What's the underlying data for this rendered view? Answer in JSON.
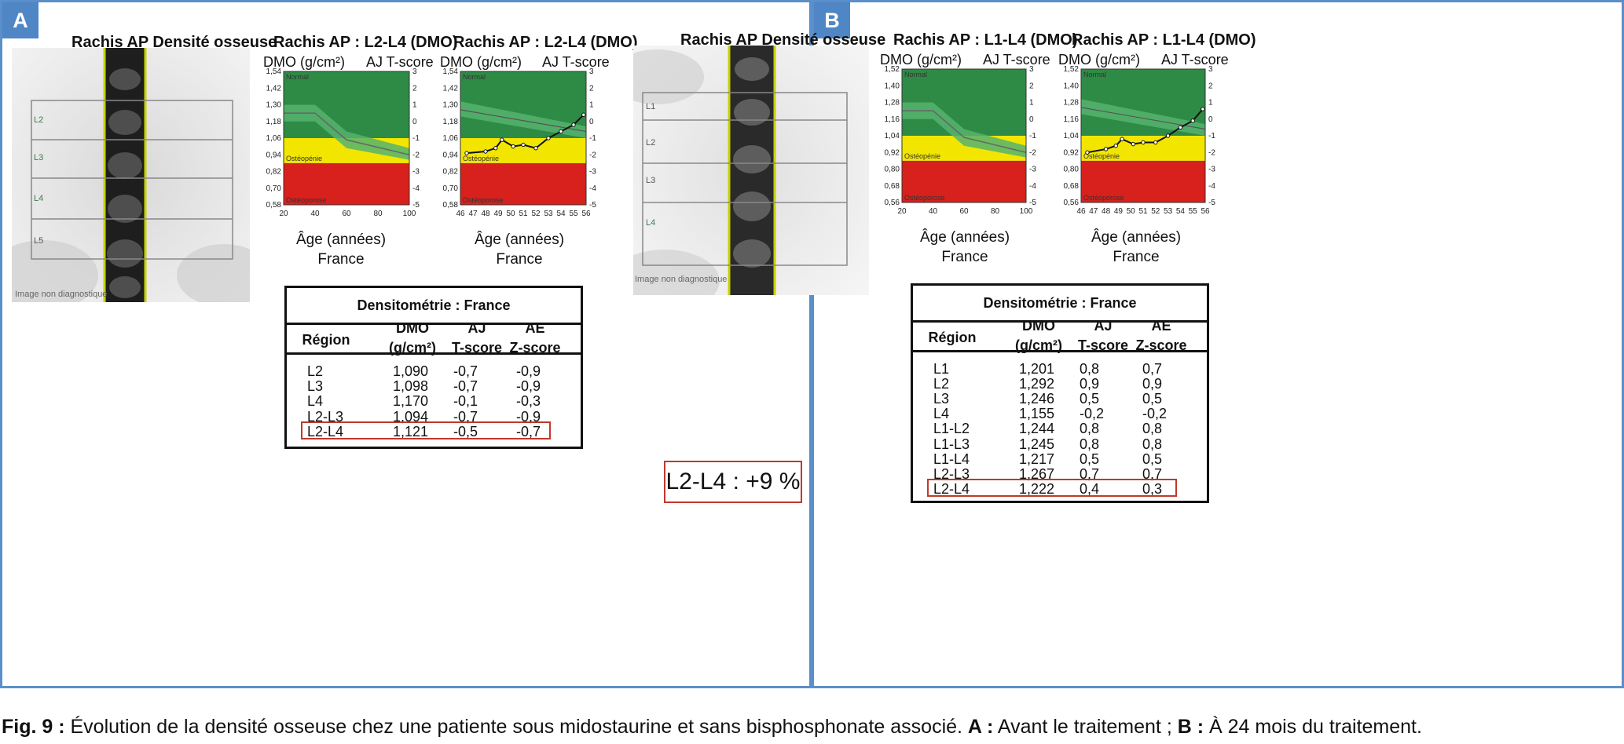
{
  "colors": {
    "frame": "#5b8fc9",
    "tag_bg": "#4f86c6",
    "normal": "#2e8b45",
    "band_light": "#55b36e",
    "osteopenia": "#f2e600",
    "osteoporosis": "#d8201c",
    "highlight": "#c0392b"
  },
  "panels": [
    {
      "id": "A",
      "tag": "A",
      "image_title": "Rachis AP Densité osseuse",
      "image_vertebrae": [
        "L2",
        "L3",
        "L4",
        "L5"
      ],
      "image_watermark": "Image non diagnostique",
      "charts": [
        {
          "title": "Rachis AP : L2-L4 (DMO)",
          "ylabel_left": "DMO (g/cm²)",
          "ylabel_right": "AJ T-score",
          "xlabel": "Âge (années)",
          "xlabel2": "France",
          "chart_data": {
            "type": "line",
            "zones": [
              "Normal",
              "Ostéopénie",
              "Ostéoporose"
            ],
            "y_left_ticks": [
              "1,54",
              "1,42",
              "1,30",
              "1,18",
              "1,06",
              "0,94",
              "0,82",
              "0,70",
              "0,58"
            ],
            "y_right_ticks": [
              "3",
              "2",
              "1",
              "0",
              "-1",
              "-2",
              "-3",
              "-4",
              "-5"
            ],
            "x_ticks": [
              "20",
              "40",
              "60",
              "80",
              "100"
            ],
            "x_range": [
              20,
              100
            ],
            "t_range": [
              -5,
              3
            ],
            "zone_bounds_t": [
              -1,
              -2.5
            ]
          }
        },
        {
          "title": "Rachis AP : L2-L4 (DMO)",
          "ylabel_left": "DMO (g/cm²)",
          "ylabel_right": "AJ T-score",
          "xlabel": "Âge (années)",
          "xlabel2": "France",
          "chart_data": {
            "type": "line",
            "zones": [
              "Normal",
              "Ostéopénie",
              "Ostéoporose"
            ],
            "y_left_ticks": [
              "1,54",
              "1,42",
              "1,30",
              "1,18",
              "1,06",
              "0,94",
              "0,82",
              "0,70",
              "0,58"
            ],
            "y_right_ticks": [
              "3",
              "2",
              "1",
              "0",
              "-1",
              "-2",
              "-3",
              "-4",
              "-5"
            ],
            "x_ticks": [
              "46",
              "47",
              "48",
              "49",
              "50",
              "51",
              "52",
              "53",
              "54",
              "55",
              "56"
            ],
            "x_range": [
              46,
              56
            ],
            "t_range": [
              -5,
              3
            ],
            "zone_bounds_t": [
              -1,
              -2.5
            ],
            "series": [
              {
                "x": [
                  46.5,
                  48,
                  48.8,
                  49.3,
                  50.2,
                  51,
                  52,
                  53,
                  54,
                  55,
                  55.8
                ],
                "y": [
                  -1.9,
                  -1.8,
                  -1.6,
                  -1.1,
                  -1.5,
                  -1.4,
                  -1.6,
                  -1.0,
                  -0.6,
                  -0.2,
                  0.4
                ]
              }
            ]
          }
        }
      ],
      "table": {
        "title": "Densitométrie : France",
        "headers": [
          {
            "l1": "",
            "l2": "Région"
          },
          {
            "l1": "DMO",
            "l2": "(g/cm²)"
          },
          {
            "l1": "AJ",
            "l2": "T-score"
          },
          {
            "l1": "AE",
            "l2": "Z-score"
          }
        ],
        "rows": [
          [
            "L2",
            "1,090",
            "-0,7",
            "-0,9"
          ],
          [
            "L3",
            "1,098",
            "-0,7",
            "-0,9"
          ],
          [
            "L4",
            "1,170",
            "-0,1",
            "-0,3"
          ],
          [
            "L2-L3",
            "1,094",
            "-0,7",
            "-0,9"
          ],
          [
            "L2-L4",
            "1,121",
            "-0,5",
            "-0,7"
          ]
        ]
      }
    },
    {
      "id": "B",
      "tag": "B",
      "image_title": "Rachis AP Densité osseuse",
      "image_vertebrae": [
        "L1",
        "L2",
        "L3",
        "L4"
      ],
      "image_watermark": "Image non diagnostique",
      "charts": [
        {
          "title": "Rachis AP : L1-L4 (DMO)",
          "ylabel_left": "DMO (g/cm²)",
          "ylabel_right": "AJ T-score",
          "xlabel": "Âge (années)",
          "xlabel2": "France",
          "chart_data": {
            "type": "line",
            "zones": [
              "Normal",
              "Ostéopénie",
              "Ostéoporose"
            ],
            "y_left_ticks": [
              "1,52",
              "1,40",
              "1,28",
              "1,16",
              "1,04",
              "0,92",
              "0,80",
              "0,68",
              "0,56"
            ],
            "y_right_ticks": [
              "3",
              "2",
              "1",
              "0",
              "-1",
              "-2",
              "-3",
              "-4",
              "-5"
            ],
            "x_ticks": [
              "20",
              "40",
              "60",
              "80",
              "100"
            ],
            "x_range": [
              20,
              100
            ],
            "t_range": [
              -5,
              3
            ],
            "zone_bounds_t": [
              -1,
              -2.5
            ]
          }
        },
        {
          "title": "Rachis AP : L1-L4 (DMO)",
          "ylabel_left": "DMO (g/cm²)",
          "ylabel_right": "AJ T-score",
          "xlabel": "Âge (années)",
          "xlabel2": "France",
          "chart_data": {
            "type": "line",
            "zones": [
              "Normal",
              "Ostéopénie",
              "Ostéoporose"
            ],
            "y_left_ticks": [
              "1,52",
              "1,40",
              "1,28",
              "1,16",
              "1,04",
              "0,92",
              "0,80",
              "0,68",
              "0,56"
            ],
            "y_right_ticks": [
              "3",
              "2",
              "1",
              "0",
              "-1",
              "-2",
              "-3",
              "-4",
              "-5"
            ],
            "x_ticks": [
              "46",
              "47",
              "48",
              "49",
              "50",
              "51",
              "52",
              "53",
              "54",
              "55",
              "56"
            ],
            "x_range": [
              46,
              56
            ],
            "t_range": [
              -5,
              3
            ],
            "zone_bounds_t": [
              -1,
              -2.5
            ],
            "series": [
              {
                "x": [
                  46.5,
                  48,
                  48.8,
                  49.3,
                  50.2,
                  51,
                  52,
                  53,
                  54,
                  55,
                  55.8
                ],
                "y": [
                  -2.0,
                  -1.8,
                  -1.6,
                  -1.2,
                  -1.5,
                  -1.4,
                  -1.4,
                  -1.0,
                  -0.5,
                  -0.1,
                  0.6
                ]
              }
            ]
          }
        }
      ],
      "table": {
        "title": "Densitométrie : France",
        "headers": [
          {
            "l1": "",
            "l2": "Région"
          },
          {
            "l1": "DMO",
            "l2": "(g/cm²)"
          },
          {
            "l1": "AJ",
            "l2": "T-score"
          },
          {
            "l1": "AE",
            "l2": "Z-score"
          }
        ],
        "rows": [
          [
            "L1",
            "1,201",
            "0,8",
            "0,7"
          ],
          [
            "L2",
            "1,292",
            "0,9",
            "0,9"
          ],
          [
            "L3",
            "1,246",
            "0,5",
            "0,5"
          ],
          [
            "L4",
            "1,155",
            "-0,2",
            "-0,2"
          ],
          [
            "L1-L2",
            "1,244",
            "0,8",
            "0,8"
          ],
          [
            "L1-L3",
            "1,245",
            "0,8",
            "0,8"
          ],
          [
            "L1-L4",
            "1,217",
            "0,5",
            "0,5"
          ],
          [
            "L2-L3",
            "1,267",
            "0,7",
            "0,7"
          ],
          [
            "L2-L4",
            "1,222",
            "0,4",
            "0,3"
          ]
        ],
        "note": "L2-L4 : +9 %"
      }
    }
  ],
  "caption": {
    "label": "Fig. 9 :",
    "text": " Évolution de la densité osseuse chez une patiente sous midostaurine et sans bisphosphonate associé. ",
    "a_label": "A :",
    "a_text": " Avant le traitement ; ",
    "b_label": "B :",
    "b_text": " À 24 mois du traitement."
  }
}
